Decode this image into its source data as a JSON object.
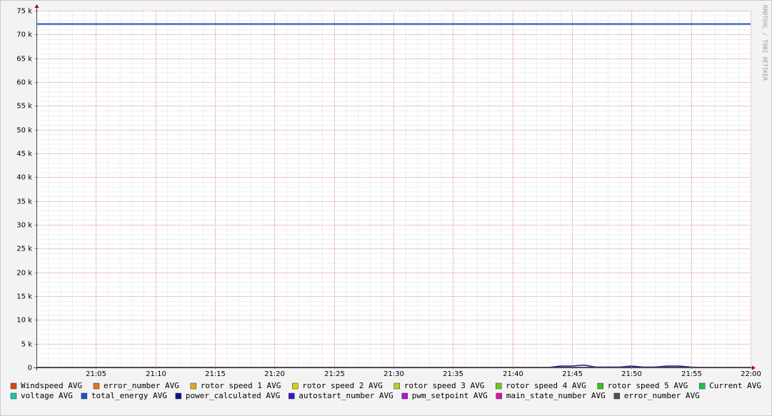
{
  "chart_data": {
    "type": "line",
    "watermark": "RRDTOOL / TOBI OETIKER",
    "x": [
      1260,
      1265,
      1270,
      1275,
      1280,
      1285,
      1290,
      1295,
      1300,
      1303,
      1304,
      1305,
      1306,
      1307,
      1308,
      1309,
      1310,
      1311,
      1312,
      1313,
      1314,
      1315,
      1316,
      1320
    ],
    "xlim": [
      1260,
      1320
    ],
    "xticks": [
      {
        "value": 1265,
        "label": "21:05"
      },
      {
        "value": 1270,
        "label": "21:10"
      },
      {
        "value": 1275,
        "label": "21:15"
      },
      {
        "value": 1280,
        "label": "21:20"
      },
      {
        "value": 1285,
        "label": "21:25"
      },
      {
        "value": 1290,
        "label": "21:30"
      },
      {
        "value": 1295,
        "label": "21:35"
      },
      {
        "value": 1300,
        "label": "21:40"
      },
      {
        "value": 1305,
        "label": "21:45"
      },
      {
        "value": 1310,
        "label": "21:50"
      },
      {
        "value": 1315,
        "label": "21:55"
      },
      {
        "value": 1320,
        "label": "22:00"
      }
    ],
    "ylim": [
      0,
      75000
    ],
    "yticks": [
      0,
      {
        "value": 5000,
        "label": "5 k"
      },
      {
        "value": 10000,
        "label": "10 k"
      },
      {
        "value": 15000,
        "label": "15 k"
      },
      {
        "value": 20000,
        "label": "20 k"
      },
      {
        "value": 25000,
        "label": "25 k"
      },
      {
        "value": 30000,
        "label": "30 k"
      },
      {
        "value": 35000,
        "label": "35 k"
      },
      {
        "value": 40000,
        "label": "40 k"
      },
      {
        "value": 45000,
        "label": "45 k"
      },
      {
        "value": 50000,
        "label": "50 k"
      },
      {
        "value": 55000,
        "label": "55 k"
      },
      {
        "value": 60000,
        "label": "60 k"
      },
      {
        "value": 65000,
        "label": "65 k"
      },
      {
        "value": 70000,
        "label": "70 k"
      },
      {
        "value": 75000,
        "label": "75 k"
      }
    ],
    "grid": true,
    "series": [
      {
        "name": "Windspeed AVG",
        "color": "#d8461a",
        "values": [
          0,
          0,
          0,
          0,
          0,
          0,
          0,
          0,
          0,
          0,
          0,
          0,
          0,
          0,
          0,
          0,
          0,
          0,
          0,
          0,
          0,
          0,
          0,
          0
        ]
      },
      {
        "name": "error_number AVG",
        "color": "#e4721a",
        "values": [
          0,
          0,
          0,
          0,
          0,
          0,
          0,
          0,
          0,
          0,
          0,
          0,
          0,
          0,
          0,
          0,
          0,
          0,
          0,
          0,
          0,
          0,
          0,
          0
        ]
      },
      {
        "name": "rotor speed 1 AVG",
        "color": "#e0a81a",
        "values": [
          0,
          0,
          0,
          0,
          0,
          0,
          0,
          0,
          0,
          0,
          0,
          0,
          0,
          0,
          0,
          0,
          0,
          0,
          0,
          0,
          0,
          0,
          0,
          0
        ]
      },
      {
        "name": "rotor speed 2 AVG",
        "color": "#d2d21a",
        "values": [
          0,
          0,
          0,
          0,
          0,
          0,
          0,
          0,
          0,
          0,
          0,
          0,
          0,
          0,
          0,
          0,
          0,
          0,
          0,
          0,
          0,
          0,
          0,
          0
        ]
      },
      {
        "name": "rotor speed 3 AVG",
        "color": "#a8d82a",
        "values": [
          0,
          0,
          0,
          0,
          0,
          0,
          0,
          0,
          0,
          0,
          0,
          0,
          0,
          0,
          0,
          0,
          0,
          0,
          0,
          0,
          0,
          0,
          0,
          0
        ]
      },
      {
        "name": "rotor speed 4 AVG",
        "color": "#6cc81a",
        "values": [
          0,
          0,
          0,
          0,
          0,
          0,
          0,
          0,
          0,
          0,
          0,
          0,
          0,
          0,
          0,
          0,
          0,
          0,
          0,
          0,
          0,
          0,
          0,
          0
        ]
      },
      {
        "name": "rotor speed 5 AVG",
        "color": "#38c41a",
        "values": [
          0,
          0,
          0,
          0,
          0,
          0,
          0,
          0,
          0,
          0,
          0,
          0,
          0,
          0,
          0,
          0,
          0,
          0,
          0,
          0,
          0,
          0,
          0,
          0
        ]
      },
      {
        "name": "Current AVG",
        "color": "#1ac44e",
        "values": [
          0,
          0,
          0,
          0,
          0,
          0,
          0,
          0,
          0,
          0,
          0,
          0,
          0,
          0,
          0,
          0,
          0,
          0,
          0,
          0,
          0,
          0,
          0,
          0
        ]
      },
      {
        "name": "voltage AVG",
        "color": "#1ac8a0",
        "values": [
          0,
          0,
          0,
          0,
          0,
          0,
          0,
          0,
          0,
          0,
          0,
          0,
          0,
          0,
          0,
          0,
          0,
          0,
          0,
          0,
          0,
          0,
          0,
          0
        ]
      },
      {
        "name": "total_energy AVG",
        "color": "#1f4fc8",
        "values": [
          72200,
          72200,
          72200,
          72200,
          72200,
          72200,
          72200,
          72200,
          72200,
          72200,
          72200,
          72200,
          72200,
          72200,
          72200,
          72200,
          72200,
          72200,
          72200,
          72200,
          72200,
          72200,
          72200,
          72200
        ]
      },
      {
        "name": "power_calculated AVG",
        "color": "#14148c",
        "values": [
          0,
          0,
          0,
          0,
          0,
          0,
          0,
          0,
          0,
          0,
          300,
          300,
          500,
          100,
          100,
          100,
          300,
          100,
          100,
          300,
          300,
          100,
          0,
          0
        ]
      },
      {
        "name": "autostart_number AVG",
        "color": "#3c14d4",
        "values": [
          0,
          0,
          0,
          0,
          0,
          0,
          0,
          0,
          0,
          0,
          0,
          0,
          0,
          0,
          0,
          0,
          0,
          0,
          0,
          0,
          0,
          0,
          0,
          0
        ]
      },
      {
        "name": "pwm_setpoint AVG",
        "color": "#a814d8",
        "values": [
          0,
          0,
          0,
          0,
          0,
          0,
          0,
          0,
          0,
          0,
          0,
          0,
          0,
          0,
          0,
          0,
          0,
          0,
          0,
          0,
          0,
          0,
          0,
          0
        ]
      },
      {
        "name": "main_state_number AVG",
        "color": "#d8149c",
        "values": [
          0,
          0,
          0,
          0,
          0,
          0,
          0,
          0,
          0,
          0,
          0,
          0,
          0,
          0,
          0,
          0,
          0,
          0,
          0,
          0,
          0,
          0,
          0,
          0
        ]
      },
      {
        "name": "error_number AVG",
        "color": "#505050",
        "values": [
          0,
          0,
          0,
          0,
          0,
          0,
          0,
          0,
          0,
          0,
          0,
          0,
          0,
          0,
          0,
          0,
          0,
          0,
          0,
          0,
          0,
          0,
          0,
          0
        ]
      }
    ]
  }
}
